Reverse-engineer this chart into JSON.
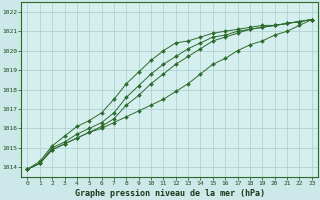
{
  "title": "Graphe pression niveau de la mer (hPa)",
  "background_color": "#cce8e8",
  "plot_bg_color": "#d5eeee",
  "grid_color": "#aacccc",
  "line_color": "#2d6b2d",
  "xlim": [
    -0.5,
    23.5
  ],
  "ylim": [
    1013.5,
    1022.5
  ],
  "yticks": [
    1014,
    1015,
    1016,
    1017,
    1018,
    1019,
    1020,
    1021,
    1022
  ],
  "xticks": [
    0,
    1,
    2,
    3,
    4,
    5,
    6,
    7,
    8,
    9,
    10,
    11,
    12,
    13,
    14,
    15,
    16,
    17,
    18,
    19,
    20,
    21,
    22,
    23
  ],
  "series": [
    [
      1013.9,
      1014.2,
      1014.9,
      1015.2,
      1015.5,
      1015.8,
      1016.0,
      1016.3,
      1016.6,
      1016.9,
      1017.2,
      1017.5,
      1017.9,
      1018.3,
      1018.8,
      1019.3,
      1019.6,
      1020.0,
      1020.3,
      1020.5,
      1020.8,
      1021.0,
      1021.3,
      1021.6
    ],
    [
      1013.9,
      1014.2,
      1014.9,
      1015.2,
      1015.5,
      1015.8,
      1016.1,
      1016.5,
      1017.2,
      1017.7,
      1018.3,
      1018.8,
      1019.3,
      1019.7,
      1020.1,
      1020.5,
      1020.7,
      1020.9,
      1021.1,
      1021.2,
      1021.3,
      1021.4,
      1021.5,
      1021.6
    ],
    [
      1013.9,
      1014.2,
      1015.0,
      1015.3,
      1015.7,
      1016.0,
      1016.3,
      1016.8,
      1017.6,
      1018.2,
      1018.8,
      1019.3,
      1019.7,
      1020.1,
      1020.4,
      1020.7,
      1020.8,
      1021.0,
      1021.1,
      1021.2,
      1021.3,
      1021.4,
      1021.5,
      1021.6
    ],
    [
      1013.9,
      1014.3,
      1015.1,
      1015.6,
      1016.1,
      1016.4,
      1016.8,
      1017.5,
      1018.3,
      1018.9,
      1019.5,
      1020.0,
      1020.4,
      1020.5,
      1020.7,
      1020.9,
      1021.0,
      1021.1,
      1021.2,
      1021.3,
      1021.3,
      1021.4,
      1021.5,
      1021.6
    ]
  ]
}
